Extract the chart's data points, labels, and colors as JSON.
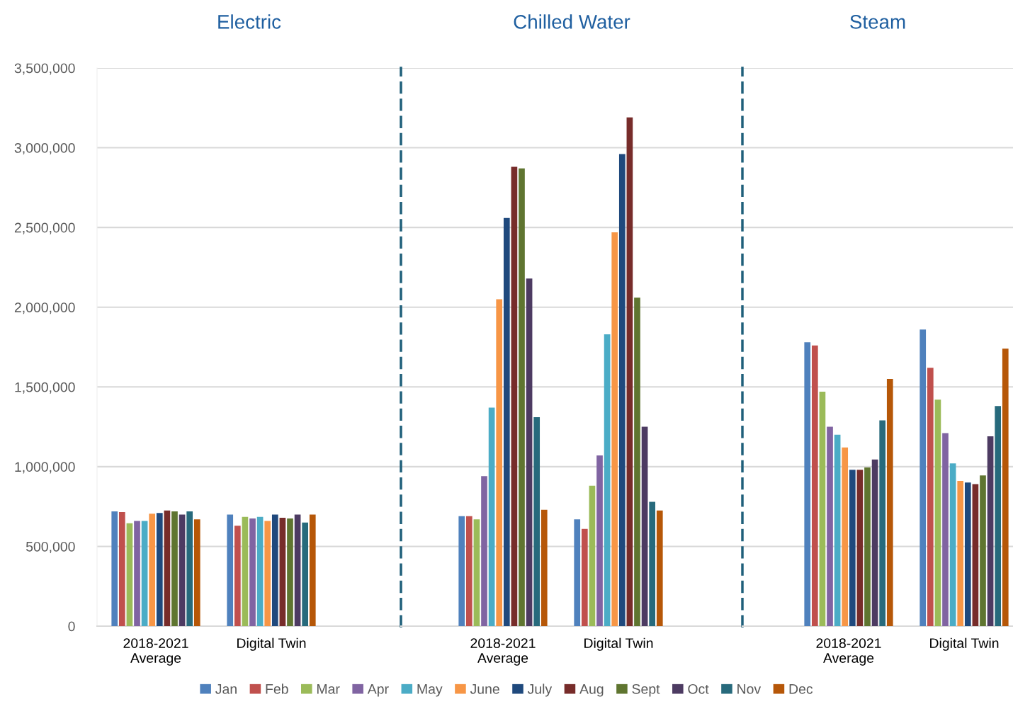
{
  "chart_data": [
    {
      "type": "bar",
      "title": "Electric",
      "categories": [
        "2018-2021\nAverage",
        "Digital Twin"
      ],
      "ylim": [
        0,
        3500000
      ],
      "yticks": [
        0,
        {
          "value": 500000,
          "label": "500,000"
        },
        {
          "value": 1000000,
          "label": "1,000,000"
        },
        {
          "value": 1500000,
          "label": "1,500,000"
        },
        {
          "value": 2000000,
          "label": "2,000,000"
        },
        {
          "value": 2500000,
          "label": "2,500,000"
        },
        {
          "value": 3000000,
          "label": "3,000,000"
        },
        {
          "value": 3500000,
          "label": "3,500,000"
        }
      ],
      "grid": "y",
      "legend": "bottom",
      "series": [
        {
          "name": "Jan",
          "color": "#4f81bd",
          "values": [
            720000,
            700000
          ]
        },
        {
          "name": "Feb",
          "color": "#c0504d",
          "values": [
            715000,
            630000
          ]
        },
        {
          "name": "Mar",
          "color": "#9bbb59",
          "values": [
            645000,
            685000
          ]
        },
        {
          "name": "Apr",
          "color": "#8064a2",
          "values": [
            660000,
            675000
          ]
        },
        {
          "name": "May",
          "color": "#4bacc6",
          "values": [
            660000,
            685000
          ]
        },
        {
          "name": "June",
          "color": "#f79646",
          "values": [
            705000,
            660000
          ]
        },
        {
          "name": "July",
          "color": "#1f497d",
          "values": [
            710000,
            700000
          ]
        },
        {
          "name": "Aug",
          "color": "#772c2a",
          "values": [
            725000,
            680000
          ]
        },
        {
          "name": "Sept",
          "color": "#5f7530",
          "values": [
            720000,
            675000
          ]
        },
        {
          "name": "Oct",
          "color": "#4d3b62",
          "values": [
            700000,
            700000
          ]
        },
        {
          "name": "Nov",
          "color": "#276a7c",
          "values": [
            720000,
            650000
          ]
        },
        {
          "name": "Dec",
          "color": "#b65708",
          "values": [
            670000,
            700000
          ]
        }
      ]
    },
    {
      "type": "bar",
      "title": "Chilled Water",
      "categories": [
        "2018-2021\nAverage",
        "Digital Twin"
      ],
      "ylim": [
        0,
        3500000
      ],
      "yticks": [
        {
          "value": 0,
          "label": null
        },
        {
          "value": 500000,
          "label": null
        },
        {
          "value": 1000000,
          "label": null
        },
        {
          "value": 1500000,
          "label": null
        },
        {
          "value": 2000000,
          "label": null
        },
        {
          "value": 2500000,
          "label": null
        },
        {
          "value": 3000000,
          "label": null
        },
        {
          "value": 3500000,
          "label": null
        }
      ],
      "grid": "y",
      "tick_labels": "x",
      "series": [
        {
          "color": "#4f81bd",
          "values": [
            690000,
            670000
          ]
        },
        {
          "color": "#c0504d",
          "values": [
            690000,
            610000
          ]
        },
        {
          "color": "#9bbb59",
          "values": [
            670000,
            880000
          ]
        },
        {
          "color": "#8064a2",
          "values": [
            940000,
            1070000
          ]
        },
        {
          "color": "#4bacc6",
          "values": [
            1370000,
            1830000
          ]
        },
        {
          "color": "#f79646",
          "values": [
            2050000,
            2470000
          ]
        },
        {
          "color": "#1f497d",
          "values": [
            2560000,
            2960000
          ]
        },
        {
          "color": "#772c2a",
          "values": [
            2880000,
            3190000
          ]
        },
        {
          "color": "#5f7530",
          "values": [
            2870000,
            2060000
          ]
        },
        {
          "color": "#4d3b62",
          "values": [
            2180000,
            1250000
          ]
        },
        {
          "color": "#276a7c",
          "values": [
            1310000,
            780000
          ]
        },
        {
          "color": "#b65708",
          "values": [
            730000,
            725000
          ]
        }
      ]
    },
    {
      "type": "bar",
      "title": "Steam",
      "categories": [
        "2018-2021\nAverage",
        "Digital Twin"
      ],
      "ylim": [
        0,
        3500000
      ],
      "yticks": [
        {
          "value": 0,
          "label": null
        },
        {
          "value": 500000,
          "label": null
        },
        {
          "value": 1000000,
          "label": null
        },
        {
          "value": 1500000,
          "label": null
        },
        {
          "value": 2000000,
          "label": null
        },
        {
          "value": 2500000,
          "label": null
        },
        {
          "value": 3000000,
          "label": null
        },
        {
          "value": 3500000,
          "label": null
        }
      ],
      "grid": "y",
      "tick_labels": "x",
      "series": [
        {
          "color": "#4f81bd",
          "values": [
            1780000,
            1860000
          ]
        },
        {
          "color": "#c0504d",
          "values": [
            1760000,
            1620000
          ]
        },
        {
          "color": "#9bbb59",
          "values": [
            1470000,
            1420000
          ]
        },
        {
          "color": "#8064a2",
          "values": [
            1250000,
            1210000
          ]
        },
        {
          "color": "#4bacc6",
          "values": [
            1200000,
            1020000
          ]
        },
        {
          "color": "#f79646",
          "values": [
            1120000,
            910000
          ]
        },
        {
          "color": "#1f497d",
          "values": [
            980000,
            900000
          ]
        },
        {
          "color": "#772c2a",
          "values": [
            980000,
            890000
          ]
        },
        {
          "color": "#5f7530",
          "values": [
            995000,
            945000
          ]
        },
        {
          "color": "#4d3b62",
          "values": [
            1045000,
            1190000
          ]
        },
        {
          "color": "#276a7c",
          "values": [
            1290000,
            1380000
          ]
        },
        {
          "color": "#b65708",
          "values": [
            1550000,
            1740000
          ]
        }
      ]
    }
  ]
}
